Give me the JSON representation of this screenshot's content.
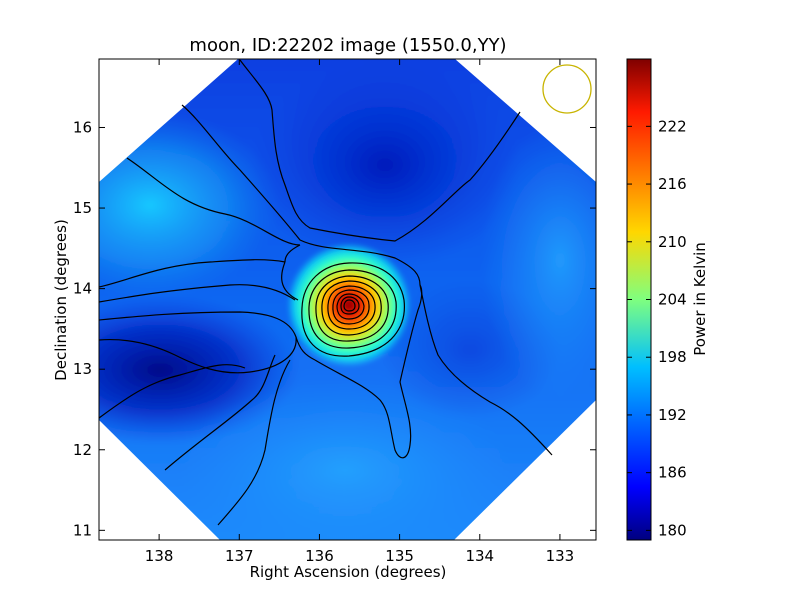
{
  "chart_data": {
    "type": "heatmap",
    "title": "moon, ID:22202 image (1550.0,YY)",
    "xlabel": "Right Ascension (degrees)",
    "ylabel": "Declination (degrees)",
    "colorbar_label": "Power in Kelvin",
    "colormap": "jet",
    "xlim": [
      138.75,
      132.55
    ],
    "ylim": [
      10.88,
      16.85
    ],
    "x_ticks": [
      138,
      137,
      136,
      135,
      134,
      133
    ],
    "y_ticks": [
      11,
      12,
      13,
      14,
      15,
      16
    ],
    "clim": [
      179,
      229
    ],
    "colorbar_ticks": [
      180,
      186,
      192,
      198,
      204,
      210,
      216,
      222
    ],
    "peak": {
      "ra": 135.62,
      "dec": 13.82,
      "value": 229
    },
    "contours": true,
    "beam_circle_color": "#c8b400"
  }
}
